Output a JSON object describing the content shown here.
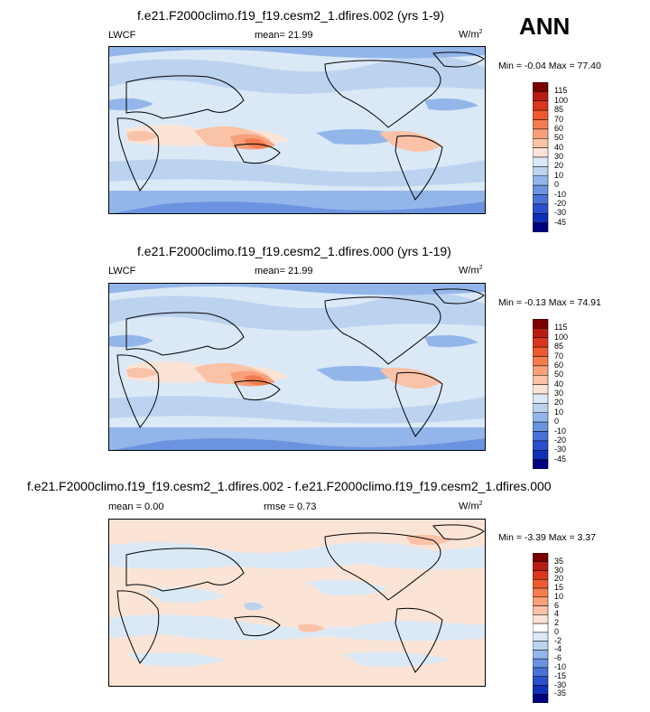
{
  "season": "ANN",
  "panels": [
    {
      "title": "f.e21.F2000climo.f19_f19.cesm2_1.dfires.002 (yrs 1-9)",
      "left_label": "LWCF",
      "center_label": "mean=  21.99",
      "unit": "W/m",
      "unit_sup": "2",
      "minmax": "Min =  -0.04 Max =  77.40",
      "colorbar": {
        "levels": [
          "115",
          "100",
          "85",
          "70",
          "60",
          "50",
          "40",
          "30",
          "20",
          "10",
          "0",
          "-10",
          "-20",
          "-30",
          "-45"
        ],
        "colors": [
          "#7a0000",
          "#b81d13",
          "#d8361f",
          "#ee5a30",
          "#f47d50",
          "#f7a07a",
          "#fac2a6",
          "#fbe4d6",
          "#dbe9f6",
          "#bcd3f0",
          "#93b6ea",
          "#6b93e0",
          "#4a71d6",
          "#2a4fcc",
          "#1030b8",
          "#00007f"
        ]
      }
    },
    {
      "title": "f.e21.F2000climo.f19_f19.cesm2_1.dfires.000 (yrs 1-19)",
      "left_label": "LWCF",
      "center_label": "mean=  21.99",
      "unit": "W/m",
      "unit_sup": "2",
      "minmax": "Min =  -0.13 Max =  74.91",
      "colorbar": {
        "levels": [
          "115",
          "100",
          "85",
          "70",
          "60",
          "50",
          "40",
          "30",
          "20",
          "10",
          "0",
          "-10",
          "-20",
          "-30",
          "-45"
        ],
        "colors": [
          "#7a0000",
          "#b81d13",
          "#d8361f",
          "#ee5a30",
          "#f47d50",
          "#f7a07a",
          "#fac2a6",
          "#fbe4d6",
          "#dbe9f6",
          "#bcd3f0",
          "#93b6ea",
          "#6b93e0",
          "#4a71d6",
          "#2a4fcc",
          "#1030b8",
          "#00007f"
        ]
      }
    },
    {
      "title": "f.e21.F2000climo.f19_f19.cesm2_1.dfires.002 - f.e21.F2000climo.f19_f19.cesm2_1.dfires.000",
      "left_label": "mean =   0.00",
      "center_label": "rmse =   0.73",
      "unit": "W/m",
      "unit_sup": "2",
      "minmax": "Min =  -3.39 Max =   3.37",
      "colorbar": {
        "levels": [
          "35",
          "30",
          "20",
          "15",
          "10",
          "6",
          "4",
          "2",
          "0",
          "-2",
          "-4",
          "-6",
          "-10",
          "-15",
          "-30",
          "-35"
        ],
        "colors": [
          "#7a0000",
          "#b81d13",
          "#d8361f",
          "#ee5a30",
          "#f47d50",
          "#f7a07a",
          "#fac2a6",
          "#fbe4d6",
          "#ffffff",
          "#dbe9f6",
          "#bcd3f0",
          "#93b6ea",
          "#6b93e0",
          "#4a71d6",
          "#2a4fcc",
          "#1030b8",
          "#00007f"
        ]
      }
    }
  ],
  "chart_data": [
    {
      "type": "heatmap",
      "title": "f.e21.F2000climo.f19_f19.cesm2_1.dfires.002 (yrs 1-9)",
      "variable": "LWCF",
      "mean": 21.99,
      "min": -0.04,
      "max": 77.4,
      "units": "W/m2",
      "season": "ANN"
    },
    {
      "type": "heatmap",
      "title": "f.e21.F2000climo.f19_f19.cesm2_1.dfires.000 (yrs 1-19)",
      "variable": "LWCF",
      "mean": 21.99,
      "min": -0.13,
      "max": 74.91,
      "units": "W/m2",
      "season": "ANN"
    },
    {
      "type": "heatmap",
      "title": "f.e21.F2000climo.f19_f19.cesm2_1.dfires.002 - f.e21.F2000climo.f19_f19.cesm2_1.dfires.000",
      "mean": 0.0,
      "rmse": 0.73,
      "min": -3.39,
      "max": 3.37,
      "units": "W/m2",
      "season": "ANN"
    }
  ]
}
